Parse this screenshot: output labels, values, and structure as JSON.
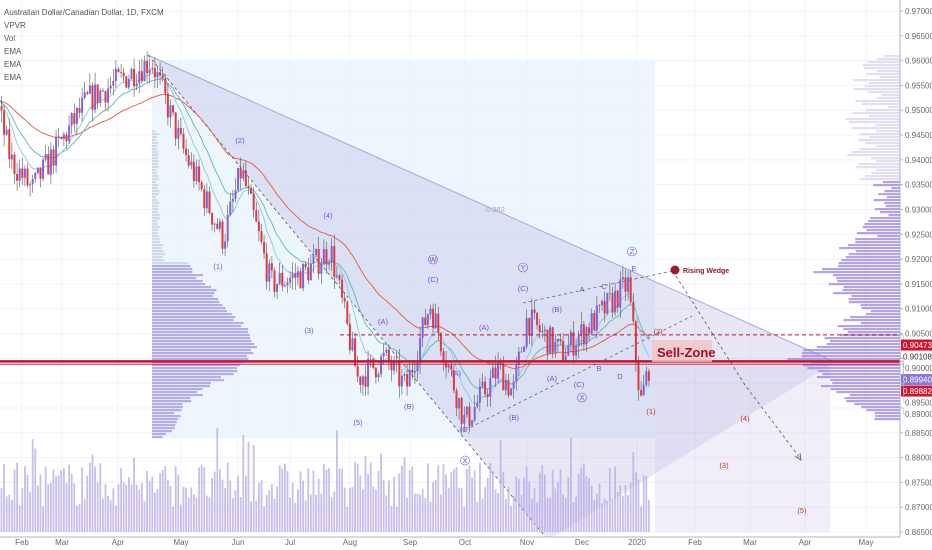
{
  "legend": {
    "title": "Australian Dollar/Canadian Dollar, 1D, FXCM",
    "indicators": [
      "VPVR",
      "Vol",
      "EMA",
      "EMA",
      "EMA"
    ]
  },
  "colors": {
    "up_candle": "#7f63d8",
    "down_candle": "#e0393e",
    "ema_slow": "#e8583f",
    "ema_mid": "#5fb7b0",
    "ema_fast": "#8fc6e8",
    "resistance": "#c8102e",
    "wave_label": "#7d4ec9",
    "sell_zone_fill": "#f2c4c4",
    "sell_zone_text": "#a3101e"
  },
  "chart_data": {
    "type": "candlestick",
    "title": "Australian Dollar/Canadian Dollar, 1D, FXCM",
    "x_ticks": [
      "Feb",
      "Mar",
      "Apr",
      "May",
      "Jun",
      "Jul",
      "Aug",
      "Sep",
      "Oct",
      "Nov",
      "Dec",
      "2020",
      "Feb",
      "Mar",
      "Apr",
      "May"
    ],
    "y_ticks": [
      "0.97000",
      "0.96500",
      "0.96000",
      "0.95500",
      "0.95000",
      "0.94500",
      "0.94000",
      "0.93500",
      "0.93000",
      "0.92500",
      "0.92000",
      "0.91500",
      "0.91000",
      "0.90500",
      "0.90000",
      "0.89500",
      "0.89000",
      "0.88500",
      "0.88000",
      "0.87500",
      "0.87000",
      "0.86500"
    ],
    "ylim": [
      0.865,
      0.97
    ],
    "close_path": [
      [
        "2019-01-14",
        0.952
      ],
      [
        "2019-01-24",
        0.94
      ],
      [
        "2019-02-08",
        0.934
      ],
      [
        "2019-02-25",
        0.942
      ],
      [
        "2019-03-15",
        0.952
      ],
      [
        "2019-04-17",
        0.96
      ],
      [
        "2019-05-01",
        0.943
      ],
      [
        "2019-05-24",
        0.924
      ],
      [
        "2019-06-03",
        0.938
      ],
      [
        "2019-06-20",
        0.915
      ],
      [
        "2019-07-08",
        0.917
      ],
      [
        "2019-07-22",
        0.922
      ],
      [
        "2019-08-05",
        0.896
      ],
      [
        "2019-08-19",
        0.9
      ],
      [
        "2019-08-30",
        0.894
      ],
      [
        "2019-09-12",
        0.911
      ],
      [
        "2019-10-01",
        0.887
      ],
      [
        "2019-10-18",
        0.898
      ],
      [
        "2019-10-25",
        0.893
      ],
      [
        "2019-11-01",
        0.908
      ],
      [
        "2019-11-20",
        0.901
      ],
      [
        "2019-12-09",
        0.908
      ],
      [
        "2019-12-27",
        0.915
      ],
      [
        "2020-01-03",
        0.891
      ],
      [
        "2020-01-08",
        0.8994
      ]
    ],
    "price_labels": {
      "sell_line": "0.90473",
      "level": "0.90108",
      "current": "0.89940",
      "bid": "0.89882"
    },
    "annotations": {
      "fib_level": "0.382",
      "pattern": "Rising Wedge",
      "zone": "Sell-Zone",
      "waves": [
        "(2)",
        "(4)",
        "(1)",
        "(3)",
        "(5)",
        "(A)",
        "(B)",
        "(C)",
        "W",
        "(A)",
        "(A)",
        "(B)",
        "(C)",
        "Y",
        "(B)",
        "(A)",
        "(C)",
        "X",
        "X",
        "(C)",
        "A",
        "C",
        "B",
        "D",
        "E",
        "Z",
        "(2)",
        "(1)",
        "(3)",
        "(4)",
        "(5)"
      ]
    }
  }
}
